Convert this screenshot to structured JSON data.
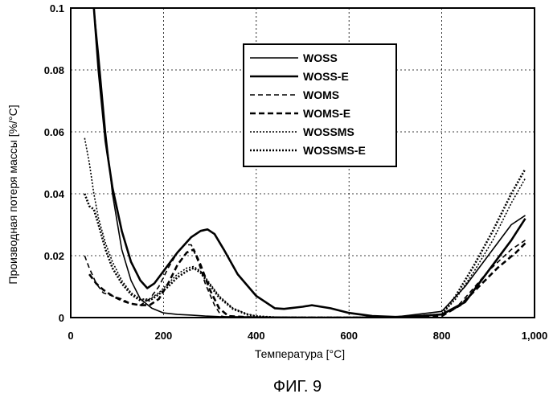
{
  "figure_caption": "ФИГ. 9",
  "chart_data": {
    "type": "line",
    "title": "",
    "xlabel": "Температура [°C]",
    "ylabel": "Производная потеря массы [%/°C]",
    "xlim": [
      0,
      1000
    ],
    "ylim": [
      0,
      0.1
    ],
    "x_ticks": [
      0,
      200,
      400,
      600,
      800,
      1000
    ],
    "x_tick_labels": [
      "0",
      "200",
      "400",
      "600",
      "800",
      "1,000"
    ],
    "y_ticks": [
      0,
      0.02,
      0.04,
      0.06,
      0.08,
      0.1
    ],
    "y_tick_labels": [
      "0",
      "0.02",
      "0.04",
      "0.06",
      "0.08",
      "0.1"
    ],
    "grid": true,
    "legend_position": "top-right",
    "series": [
      {
        "name": "WOSS",
        "style": "solid-thin",
        "x": [
          50,
          60,
          75,
          90,
          110,
          130,
          150,
          175,
          200,
          230,
          260,
          290,
          320,
          400,
          500,
          600,
          700,
          800,
          850,
          900,
          950,
          980
        ],
        "y": [
          0.1,
          0.085,
          0.06,
          0.04,
          0.022,
          0.012,
          0.006,
          0.003,
          0.0015,
          0.001,
          0.0008,
          0.0005,
          0.0003,
          0.0002,
          0.0001,
          0.0001,
          0.0002,
          0.002,
          0.01,
          0.02,
          0.03,
          0.033
        ]
      },
      {
        "name": "WOSS-E",
        "style": "solid-thick",
        "x": [
          50,
          60,
          75,
          90,
          110,
          130,
          150,
          165,
          180,
          200,
          230,
          260,
          280,
          295,
          310,
          330,
          360,
          400,
          440,
          460,
          500,
          520,
          560,
          600,
          650,
          700,
          750,
          800,
          850,
          900,
          950,
          980
        ],
        "y": [
          0.1,
          0.08,
          0.057,
          0.042,
          0.028,
          0.018,
          0.012,
          0.0095,
          0.011,
          0.015,
          0.021,
          0.026,
          0.028,
          0.0285,
          0.027,
          0.022,
          0.014,
          0.007,
          0.003,
          0.0028,
          0.0035,
          0.004,
          0.003,
          0.0015,
          0.0005,
          0.0002,
          0.0005,
          0.001,
          0.005,
          0.015,
          0.025,
          0.032
        ]
      },
      {
        "name": "WOMS",
        "style": "dash",
        "x": [
          30,
          40,
          55,
          70,
          90,
          110,
          130,
          150,
          170,
          190,
          210,
          230,
          245,
          260,
          275,
          290,
          310,
          325,
          340,
          400,
          500,
          600,
          700,
          800,
          830,
          860,
          900,
          950,
          980
        ],
        "y": [
          0.02,
          0.016,
          0.011,
          0.008,
          0.007,
          0.006,
          0.0045,
          0.004,
          0.006,
          0.01,
          0.016,
          0.021,
          0.0235,
          0.0235,
          0.018,
          0.011,
          0.004,
          0.0005,
          0.0,
          0.0,
          0.0,
          0.0,
          0.0,
          0.001,
          0.003,
          0.008,
          0.015,
          0.022,
          0.025
        ]
      },
      {
        "name": "WOMS-E",
        "style": "dash-thick",
        "x": [
          40,
          55,
          70,
          90,
          110,
          130,
          150,
          170,
          190,
          210,
          230,
          250,
          265,
          280,
          300,
          320,
          340,
          400,
          500,
          600,
          700,
          800,
          840,
          880,
          920,
          960,
          980
        ],
        "y": [
          0.014,
          0.011,
          0.009,
          0.007,
          0.0055,
          0.0045,
          0.004,
          0.004,
          0.006,
          0.011,
          0.017,
          0.021,
          0.022,
          0.017,
          0.009,
          0.003,
          0.0005,
          0.0,
          0.0,
          0.0,
          0.0,
          0.0005,
          0.004,
          0.01,
          0.016,
          0.021,
          0.024
        ]
      },
      {
        "name": "WOSSMS",
        "style": "dot",
        "x": [
          30,
          40,
          50,
          60,
          75,
          90,
          110,
          130,
          150,
          170,
          190,
          210,
          230,
          250,
          265,
          280,
          300,
          320,
          350,
          380,
          400,
          450,
          500,
          600,
          700,
          800,
          830,
          870,
          910,
          950,
          980
        ],
        "y": [
          0.058,
          0.05,
          0.04,
          0.032,
          0.024,
          0.018,
          0.012,
          0.008,
          0.006,
          0.006,
          0.008,
          0.011,
          0.014,
          0.016,
          0.0165,
          0.015,
          0.011,
          0.007,
          0.003,
          0.0012,
          0.0005,
          0.0,
          0.0,
          0.0,
          0.0,
          0.001,
          0.006,
          0.015,
          0.025,
          0.037,
          0.045
        ]
      },
      {
        "name": "WOSSMS-E",
        "style": "dot-thick",
        "x": [
          30,
          40,
          50,
          60,
          75,
          90,
          110,
          130,
          150,
          170,
          190,
          210,
          230,
          250,
          265,
          280,
          300,
          320,
          350,
          380,
          400,
          450,
          500,
          600,
          700,
          800,
          830,
          870,
          910,
          950,
          980
        ],
        "y": [
          0.04,
          0.036,
          0.035,
          0.03,
          0.022,
          0.016,
          0.011,
          0.0075,
          0.0055,
          0.0055,
          0.0075,
          0.01,
          0.013,
          0.015,
          0.016,
          0.0145,
          0.0105,
          0.0065,
          0.0028,
          0.001,
          0.0004,
          0.0,
          0.0,
          0.0,
          0.0,
          0.001,
          0.007,
          0.017,
          0.028,
          0.04,
          0.048
        ]
      }
    ]
  }
}
